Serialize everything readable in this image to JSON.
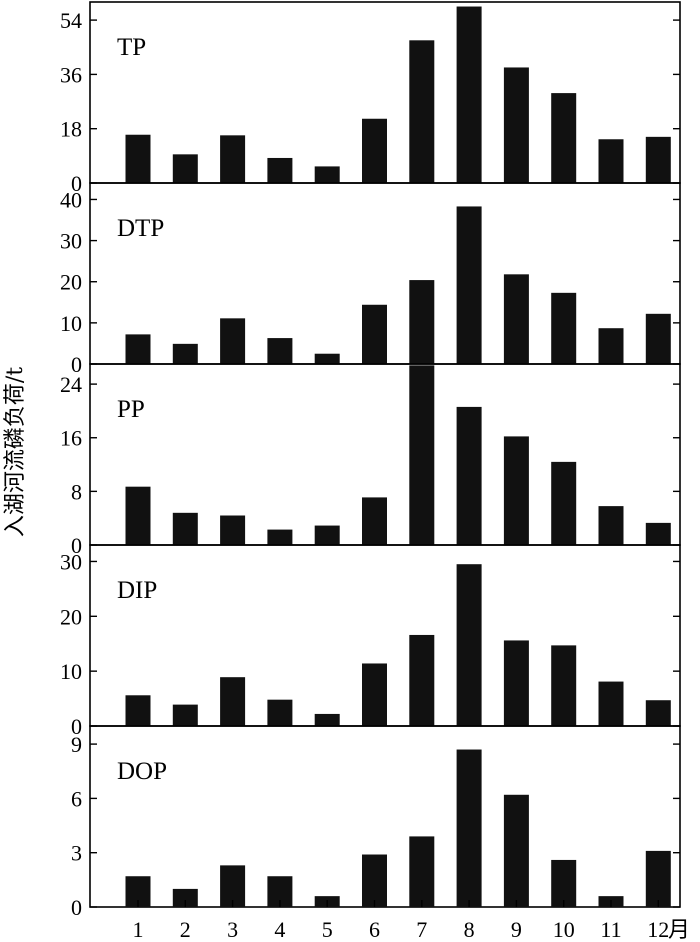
{
  "chart_data": {
    "type": "bar",
    "ylabel": "入湖河流磷负荷/t",
    "categories": [
      "1",
      "2",
      "3",
      "4",
      "5",
      "6",
      "7",
      "8",
      "9",
      "10",
      "11",
      "12"
    ],
    "x_unit_label": "月",
    "panels": [
      {
        "title": "TP",
        "ylim": [
          0,
          60
        ],
        "yticks": [
          0,
          18,
          36,
          54
        ],
        "values": [
          16,
          9.5,
          15.8,
          8.3,
          5.5,
          21.3,
          47.3,
          58.5,
          38.3,
          29.8,
          14.5,
          15.3
        ]
      },
      {
        "title": "DTP",
        "ylim": [
          0,
          44
        ],
        "yticks": [
          0,
          10,
          20,
          30,
          40
        ],
        "values": [
          7.2,
          4.9,
          11.1,
          6.3,
          2.5,
          14.4,
          20.4,
          38.3,
          21.8,
          17.3,
          8.7,
          12.2
        ]
      },
      {
        "title": "PP",
        "ylim": [
          0,
          27
        ],
        "yticks": [
          0,
          8,
          16,
          24
        ],
        "values": [
          8.7,
          4.8,
          4.4,
          2.3,
          2.9,
          7.1,
          26.8,
          20.6,
          16.2,
          12.4,
          5.8,
          3.3
        ]
      },
      {
        "title": "DIP",
        "ylim": [
          0,
          33
        ],
        "yticks": [
          0,
          10,
          20,
          30
        ],
        "values": [
          5.6,
          3.9,
          8.9,
          4.8,
          2.2,
          11.4,
          16.6,
          29.5,
          15.6,
          14.7,
          8.1,
          4.7
        ]
      },
      {
        "title": "DOP",
        "ylim": [
          0,
          10
        ],
        "yticks": [
          0,
          3,
          6,
          9
        ],
        "values": [
          1.7,
          1.0,
          2.3,
          1.7,
          0.6,
          2.9,
          3.9,
          8.7,
          6.2,
          2.6,
          0.6,
          3.1
        ]
      }
    ]
  }
}
